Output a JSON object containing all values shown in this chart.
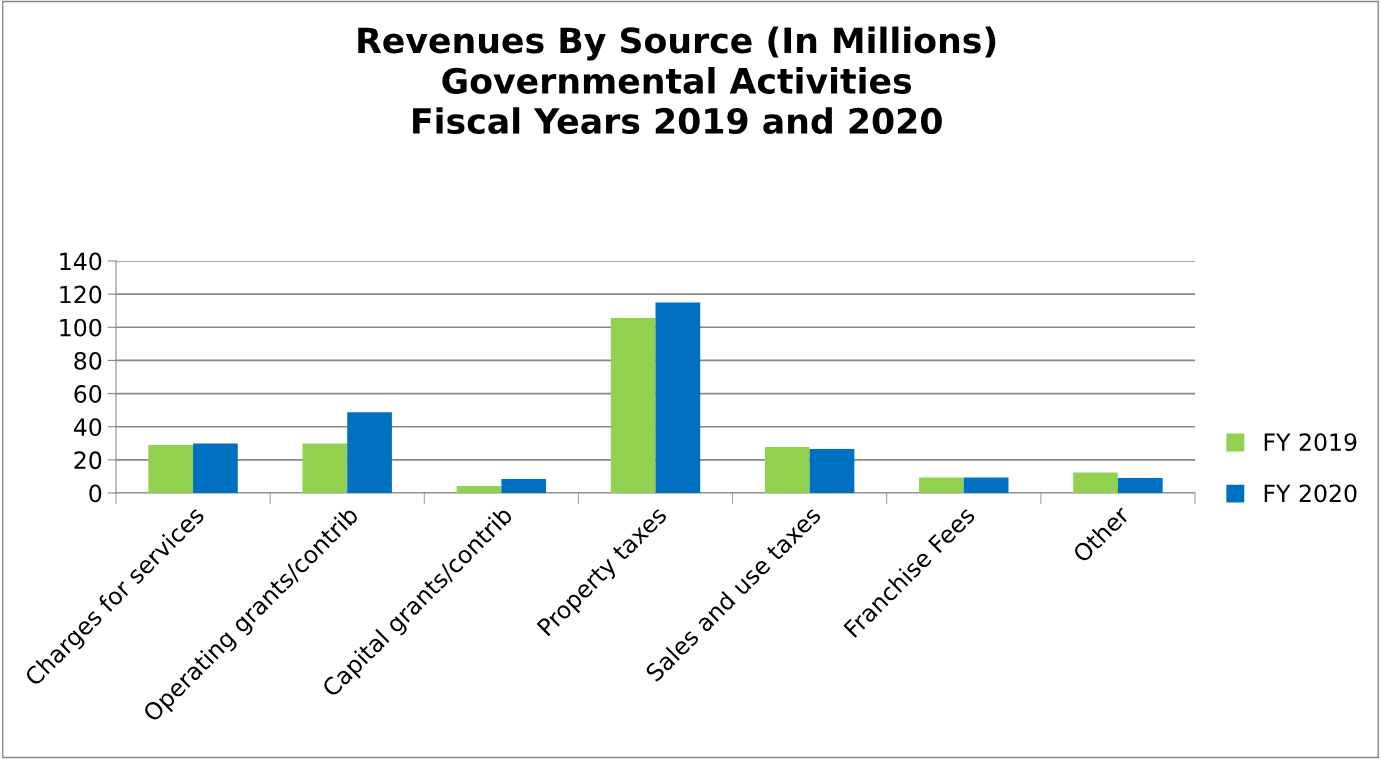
{
  "chart_data": {
    "type": "bar",
    "title": "Revenues By Source (In Millions)\nGovernmental Activities\nFiscal Years 2019 and 2020",
    "categories": [
      "Charges for services",
      "Operating grants/contrib",
      "Capital grants/contrib",
      "Property taxes",
      "Sales and use taxes",
      "Franchise Fees",
      "Other"
    ],
    "series": [
      {
        "name": "FY 2019",
        "color": "#92d050",
        "values": [
          29,
          29.8,
          4.2,
          105.6,
          27.7,
          9.3,
          12.3
        ]
      },
      {
        "name": "FY 2020",
        "color": "#0070c0",
        "values": [
          29.8,
          48.8,
          8.4,
          115,
          26.6,
          9.3,
          9
        ]
      }
    ],
    "ylim": [
      0,
      140
    ],
    "yticks": [
      0,
      20,
      40,
      60,
      80,
      100,
      120,
      140
    ],
    "grid": "y",
    "legend": "right"
  }
}
